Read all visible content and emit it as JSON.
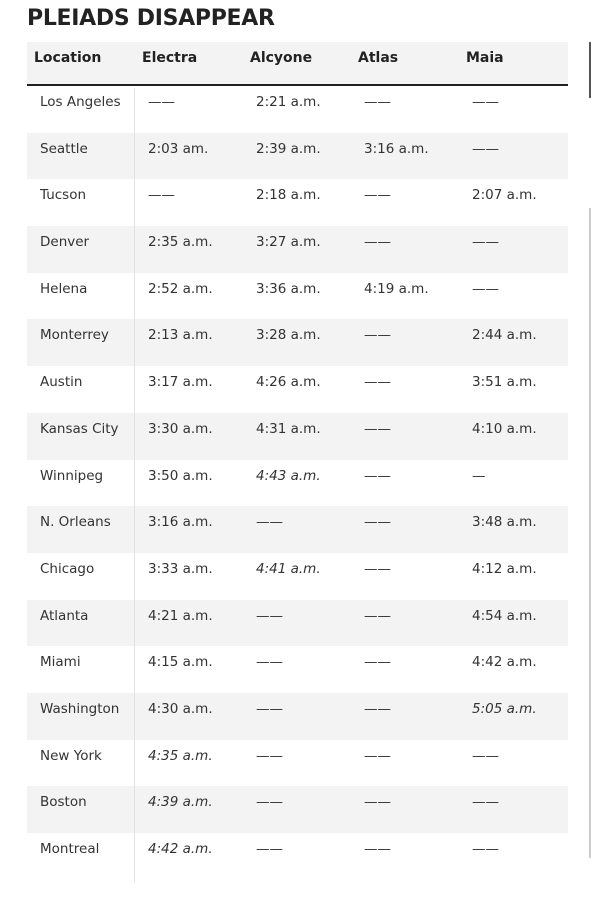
{
  "title": "PLEIADS DISAPPEAR",
  "headers": [
    "Location",
    "Electra",
    "Alcyone",
    "Atlas",
    "Maia"
  ],
  "rows": [
    {
      "cells": [
        "Los Angeles",
        "——",
        "2:21 a.m.",
        "——",
        "——"
      ],
      "italic": []
    },
    {
      "cells": [
        "Seattle",
        "2:03 am.",
        "2:39 a.m.",
        "3:16 a.m.",
        "——"
      ],
      "italic": []
    },
    {
      "cells": [
        "Tucson",
        "——",
        "2:18 a.m.",
        "——",
        "2:07 a.m."
      ],
      "italic": []
    },
    {
      "cells": [
        "Denver",
        "2:35 a.m.",
        "3:27 a.m.",
        "——",
        "——"
      ],
      "italic": []
    },
    {
      "cells": [
        "Helena",
        "2:52 a.m.",
        "3:36 a.m.",
        "4:19 a.m.",
        "——"
      ],
      "italic": []
    },
    {
      "cells": [
        "Monterrey",
        "2:13 a.m.",
        "3:28 a.m.",
        "——",
        "2:44 a.m."
      ],
      "italic": []
    },
    {
      "cells": [
        "Austin",
        "3:17 a.m.",
        "4:26 a.m.",
        "——",
        "3:51 a.m."
      ],
      "italic": []
    },
    {
      "cells": [
        "Kansas City",
        "3:30 a.m.",
        "4:31 a.m.",
        "——",
        "4:10 a.m."
      ],
      "italic": []
    },
    {
      "cells": [
        "Winnipeg",
        "3:50 a.m.",
        "4:43 a.m.",
        "——",
        "—"
      ],
      "italic": [
        2
      ]
    },
    {
      "cells": [
        "N. Orleans",
        "3:16 a.m.",
        "——",
        "——",
        "3:48 a.m."
      ],
      "italic": []
    },
    {
      "cells": [
        "Chicago",
        "3:33 a.m.",
        "4:41 a.m.",
        "——",
        "4:12 a.m."
      ],
      "italic": [
        2
      ]
    },
    {
      "cells": [
        "Atlanta",
        "4:21 a.m.",
        "——",
        "——",
        "4:54 a.m."
      ],
      "italic": []
    },
    {
      "cells": [
        "Miami",
        "4:15 a.m.",
        "——",
        "——",
        "4:42 a.m."
      ],
      "italic": []
    },
    {
      "cells": [
        "Washington",
        "4:30 a.m.",
        "——",
        "——",
        "5:05 a.m."
      ],
      "italic": [
        4
      ]
    },
    {
      "cells": [
        "New York",
        "4:35 a.m.",
        "——",
        "——",
        "——"
      ],
      "italic": [
        1
      ]
    },
    {
      "cells": [
        "Boston",
        "4:39 a.m.",
        "——",
        "——",
        "——"
      ],
      "italic": [
        1
      ]
    },
    {
      "cells": [
        "Montreal",
        "4:42 a.m.",
        "——",
        "——",
        "——"
      ],
      "italic": [
        1
      ]
    }
  ]
}
